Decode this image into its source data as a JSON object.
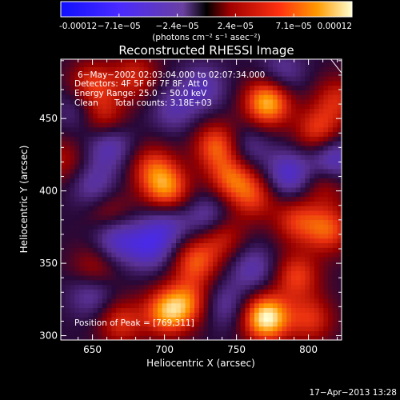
{
  "chart_data": {
    "type": "heatmap",
    "title": "Reconstructed RHESSI Image",
    "xlabel": "Heliocentric X (arcsec)",
    "ylabel": "Heliocentric Y (arcsec)",
    "xlim": [
      628,
      823
    ],
    "ylim": [
      297,
      491
    ],
    "x_ticks": [
      650,
      700,
      750,
      800
    ],
    "y_ticks": [
      300,
      350,
      400,
      450
    ],
    "colorbar": {
      "ticks": [
        "-0.00012",
        "−7.1e−05",
        "−2.4e−05",
        "2.4e−05",
        "7.1e−05",
        "0.00012"
      ],
      "units": "(photons cm⁻² s⁻¹ asec⁻²)",
      "range": [
        -0.00012,
        0.00012
      ]
    },
    "annotations": {
      "line1": "6−May−2002 02:03:04.000 to 02:07:34.000",
      "line2": "Detectors: 4F 5F 6F 7F 8F, Att 0",
      "line3": "Energy Range: 25.0 − 50.0 keV",
      "line4": "Clean      Total counts: 3.18E+03",
      "peak": "Position of Peak = [769,311]"
    },
    "peak": [
      769,
      311
    ],
    "blobs": [
      {
        "x": 769,
        "y": 311,
        "v": 1.0
      },
      {
        "x": 770,
        "y": 460,
        "v": 0.85
      },
      {
        "x": 805,
        "y": 440,
        "v": 0.5
      },
      {
        "x": 735,
        "y": 430,
        "v": 0.6
      },
      {
        "x": 745,
        "y": 408,
        "v": 0.55
      },
      {
        "x": 700,
        "y": 400,
        "v": 0.65
      },
      {
        "x": 690,
        "y": 415,
        "v": 0.45
      },
      {
        "x": 655,
        "y": 450,
        "v": 0.45
      },
      {
        "x": 648,
        "y": 472,
        "v": 0.5
      },
      {
        "x": 678,
        "y": 478,
        "v": 0.4
      },
      {
        "x": 760,
        "y": 395,
        "v": 0.45
      },
      {
        "x": 790,
        "y": 378,
        "v": 0.45
      },
      {
        "x": 812,
        "y": 372,
        "v": 0.55
      },
      {
        "x": 810,
        "y": 405,
        "v": 0.35
      },
      {
        "x": 738,
        "y": 368,
        "v": 0.45
      },
      {
        "x": 720,
        "y": 350,
        "v": 0.55
      },
      {
        "x": 700,
        "y": 315,
        "v": 0.7
      },
      {
        "x": 715,
        "y": 322,
        "v": 0.5
      },
      {
        "x": 668,
        "y": 308,
        "v": 0.45
      },
      {
        "x": 790,
        "y": 340,
        "v": 0.5
      },
      {
        "x": 800,
        "y": 310,
        "v": 0.45
      },
      {
        "x": 650,
        "y": 345,
        "v": 0.35
      },
      {
        "x": 660,
        "y": 385,
        "v": 0.3
      },
      {
        "x": 628,
        "y": 420,
        "v": 0.3
      },
      {
        "x": 818,
        "y": 462,
        "v": 0.4
      },
      {
        "x": 660,
        "y": 430,
        "v": -0.4
      },
      {
        "x": 640,
        "y": 455,
        "v": -0.3
      },
      {
        "x": 785,
        "y": 410,
        "v": -0.5
      },
      {
        "x": 815,
        "y": 420,
        "v": -0.55
      },
      {
        "x": 730,
        "y": 380,
        "v": -0.4
      },
      {
        "x": 700,
        "y": 375,
        "v": -0.35
      },
      {
        "x": 688,
        "y": 360,
        "v": -0.45
      },
      {
        "x": 665,
        "y": 365,
        "v": -0.45
      },
      {
        "x": 650,
        "y": 402,
        "v": -0.35
      },
      {
        "x": 760,
        "y": 345,
        "v": -0.35
      },
      {
        "x": 755,
        "y": 428,
        "v": -0.3
      },
      {
        "x": 725,
        "y": 470,
        "v": -0.35
      },
      {
        "x": 705,
        "y": 455,
        "v": -0.3
      },
      {
        "x": 780,
        "y": 480,
        "v": -0.3
      },
      {
        "x": 740,
        "y": 320,
        "v": -0.3
      },
      {
        "x": 648,
        "y": 328,
        "v": -0.35
      }
    ]
  },
  "timestamp": "17−Apr−2013 13:28"
}
